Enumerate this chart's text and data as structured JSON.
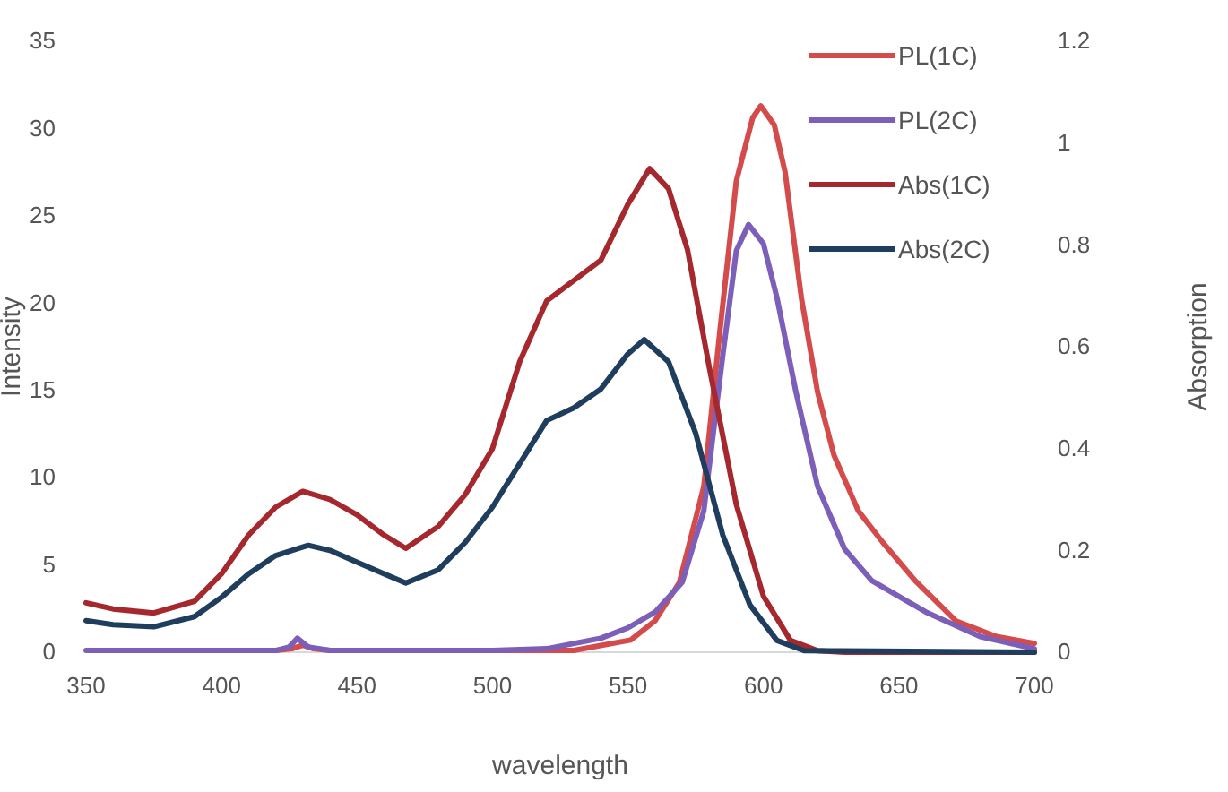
{
  "chart_data": {
    "type": "line",
    "xlabel": "wavelength",
    "ylabel": "Intensity",
    "y2label": "Absorption",
    "xlim": [
      350,
      700
    ],
    "xticks": [
      350,
      400,
      450,
      500,
      550,
      600,
      650,
      700
    ],
    "ylim": [
      0,
      35
    ],
    "yticks": [
      0,
      5,
      10,
      15,
      20,
      25,
      30,
      35
    ],
    "y2lim": [
      0,
      1.2
    ],
    "y2ticks": [
      0,
      0.2,
      0.4,
      0.6,
      0.8,
      1,
      1.2
    ],
    "grid": false,
    "legend": "top right",
    "marker": "none",
    "line_style": "solid",
    "series": [
      {
        "name": "PL(1C)",
        "color": "#d44b4b",
        "x": [
          420,
          426,
          430,
          434,
          440,
          500,
          530,
          551,
          560,
          569,
          578,
          584,
          590,
          596,
          599,
          604,
          608,
          614,
          620,
          626,
          635,
          644,
          656,
          671,
          686,
          700
        ],
        "values": [
          0.1,
          0.2,
          0.4,
          0.2,
          0.1,
          0.1,
          0.1,
          0.7,
          1.8,
          4,
          9.5,
          18.5,
          27,
          30.6,
          31.3,
          30.2,
          27.5,
          20.3,
          14.9,
          11.3,
          8.1,
          6.3,
          4.1,
          1.8,
          0.9,
          0.5
        ]
      },
      {
        "name": "PL(2C)",
        "color": "#7b5fb8",
        "x": [
          350,
          420,
          425,
          428,
          432,
          440,
          500,
          520,
          540,
          550,
          560,
          570,
          578,
          585,
          590,
          594.5,
          600,
          605,
          612,
          620,
          630,
          640,
          660,
          680,
          700
        ],
        "values": [
          0.1,
          0.1,
          0.3,
          0.8,
          0.3,
          0.1,
          0.1,
          0.2,
          0.8,
          1.4,
          2.3,
          4,
          8.1,
          17,
          23,
          24.5,
          23.4,
          20.3,
          14.9,
          9.5,
          5.9,
          4.1,
          2.3,
          0.9,
          0.2
        ]
      },
      {
        "name": "Abs(1C)",
        "color": "#a4282d",
        "axis": "y2",
        "x": [
          350,
          360,
          375,
          390,
          400,
          410,
          420,
          430,
          440,
          450,
          460,
          468,
          480,
          490,
          500,
          510,
          520,
          530,
          540,
          550,
          558,
          565,
          572,
          580,
          590,
          600,
          610,
          620,
          630,
          700
        ],
        "values": [
          0.097,
          0.085,
          0.077,
          0.1,
          0.154,
          0.23,
          0.285,
          0.316,
          0.3,
          0.27,
          0.23,
          0.204,
          0.247,
          0.31,
          0.4,
          0.57,
          0.69,
          0.73,
          0.77,
          0.88,
          0.95,
          0.91,
          0.79,
          0.56,
          0.29,
          0.11,
          0.023,
          0.003,
          0,
          0
        ]
      },
      {
        "name": "Abs(2C)",
        "color": "#1f3d5c",
        "axis": "y2",
        "x": [
          350,
          360,
          375,
          390,
          400,
          410,
          420,
          432,
          440,
          450,
          460,
          468,
          480,
          490,
          500,
          510,
          520,
          530,
          540,
          550,
          556,
          565,
          575,
          585,
          595,
          605,
          615,
          700
        ],
        "values": [
          0.062,
          0.054,
          0.05,
          0.07,
          0.108,
          0.154,
          0.19,
          0.21,
          0.2,
          0.177,
          0.154,
          0.136,
          0.162,
          0.216,
          0.285,
          0.37,
          0.455,
          0.48,
          0.517,
          0.586,
          0.614,
          0.57,
          0.43,
          0.23,
          0.093,
          0.023,
          0.003,
          0
        ]
      }
    ]
  }
}
